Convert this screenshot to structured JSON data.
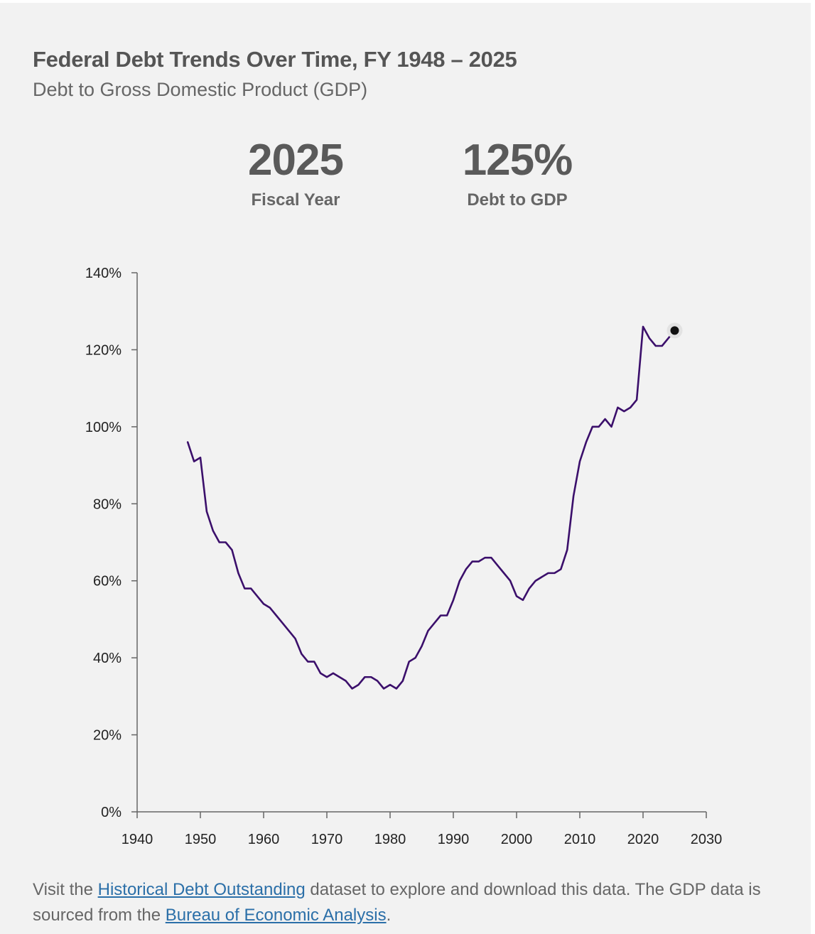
{
  "header": {
    "title": "Federal Debt Trends Over Time, FY 1948 – 2025",
    "subtitle": "Debt to Gross Domestic Product (GDP)"
  },
  "stats": {
    "year_value": "2025",
    "year_label": "Fiscal Year",
    "debt_value": "125%",
    "debt_label": "Debt to GDP"
  },
  "chart_data": {
    "type": "line",
    "title": "Federal Debt Trends Over Time, FY 1948 – 2025",
    "subtitle": "Debt to Gross Domestic Product (GDP)",
    "xlabel": "",
    "ylabel": "",
    "xlim": [
      1940,
      2030
    ],
    "ylim": [
      0,
      140
    ],
    "x_ticks": [
      1940,
      1950,
      1960,
      1970,
      1980,
      1990,
      2000,
      2010,
      2020,
      2030
    ],
    "x_tick_labels": [
      "1940",
      "1950",
      "1960",
      "1970",
      "1980",
      "1990",
      "2000",
      "2010",
      "2020",
      "2030"
    ],
    "y_ticks": [
      0,
      20,
      40,
      60,
      80,
      100,
      120,
      140
    ],
    "y_tick_labels": [
      "0%",
      "20%",
      "40%",
      "60%",
      "80%",
      "100%",
      "120%",
      "140%"
    ],
    "grid": false,
    "line_color": "#3b0f6b",
    "highlight": {
      "x": 2025,
      "y": 125,
      "color": "#111111"
    },
    "series": [
      {
        "name": "Debt to GDP",
        "x": [
          1948,
          1949,
          1950,
          1951,
          1952,
          1953,
          1954,
          1955,
          1956,
          1957,
          1958,
          1959,
          1960,
          1961,
          1962,
          1963,
          1964,
          1965,
          1966,
          1967,
          1968,
          1969,
          1970,
          1971,
          1972,
          1973,
          1974,
          1975,
          1976,
          1977,
          1978,
          1979,
          1980,
          1981,
          1982,
          1983,
          1984,
          1985,
          1986,
          1987,
          1988,
          1989,
          1990,
          1991,
          1992,
          1993,
          1994,
          1995,
          1996,
          1997,
          1998,
          1999,
          2000,
          2001,
          2002,
          2003,
          2004,
          2005,
          2006,
          2007,
          2008,
          2009,
          2010,
          2011,
          2012,
          2013,
          2014,
          2015,
          2016,
          2017,
          2018,
          2019,
          2020,
          2021,
          2022,
          2023,
          2024,
          2025
        ],
        "values": [
          96,
          91,
          92,
          78,
          73,
          70,
          70,
          68,
          62,
          58,
          58,
          56,
          54,
          53,
          51,
          49,
          47,
          45,
          41,
          39,
          39,
          36,
          35,
          36,
          35,
          34,
          32,
          33,
          35,
          35,
          34,
          32,
          33,
          32,
          34,
          39,
          40,
          43,
          47,
          49,
          51,
          51,
          55,
          60,
          63,
          65,
          65,
          66,
          66,
          64,
          62,
          60,
          56,
          55,
          58,
          60,
          61,
          62,
          62,
          63,
          68,
          82,
          91,
          96,
          100,
          100,
          102,
          100,
          105,
          104,
          105,
          107,
          126,
          123,
          121,
          121,
          123,
          125
        ]
      }
    ]
  },
  "footer": {
    "text_1": "Visit the ",
    "link_1": "Historical Debt Outstanding",
    "text_2": " dataset to explore and download this data. The GDP data is sourced from the ",
    "link_2": "Bureau of Economic Analysis",
    "text_3": "."
  }
}
